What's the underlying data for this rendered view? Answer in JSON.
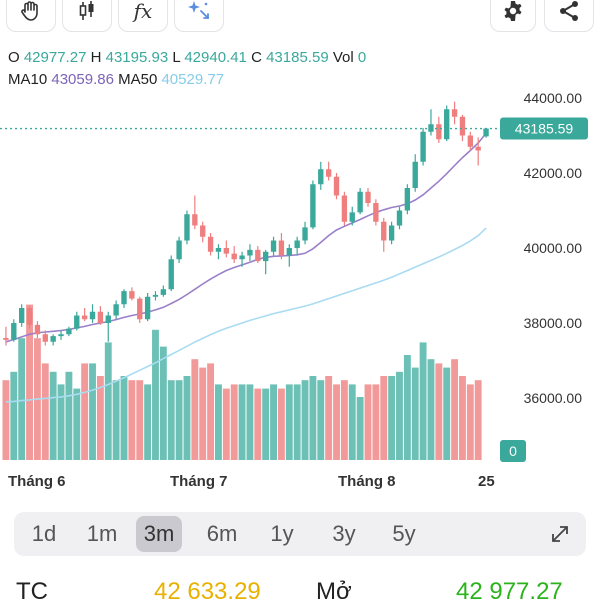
{
  "toolbar": {
    "left_tools": [
      {
        "icon": "hand-icon"
      },
      {
        "icon": "candlestick-icon"
      },
      {
        "icon": "function-icon",
        "label": "fx"
      },
      {
        "icon": "sparkle-icon"
      }
    ],
    "right_tools": [
      {
        "icon": "gear-icon"
      },
      {
        "icon": "share-icon"
      }
    ]
  },
  "ohlc": {
    "open_label": "O",
    "open": "42977.27",
    "high_label": "H",
    "high": "43195.93",
    "low_label": "L",
    "low": "42940.41",
    "close_label": "C",
    "close": "43185.59",
    "vol_label": "Vol",
    "vol": "0"
  },
  "ma": {
    "ma10_label": "MA10",
    "ma10": "43059.86",
    "ma50_label": "MA50",
    "ma50": "40529.77"
  },
  "colors": {
    "up": "#3aa89b",
    "down": "#ef7f7f",
    "up_volume": "#6cc0b5",
    "down_volume": "#f2999a",
    "ma10": "#9a7fca",
    "ma50": "#a9dcf2",
    "price_tag": "#3aa89b"
  },
  "chart_data": {
    "type": "candlestick",
    "y_ticks": [
      "44000.00",
      "42000.00",
      "40000.00",
      "38000.00",
      "36000.00"
    ],
    "ylim": [
      35000,
      44600
    ],
    "x_labels": [
      "Tháng 6",
      "Tháng 7",
      "Tháng 8",
      "25"
    ],
    "current_price_label": "43185.59",
    "volume_label": "0",
    "candles": [
      [
        37600,
        37900,
        37400,
        37550
      ],
      [
        37550,
        38100,
        37500,
        38000
      ],
      [
        38000,
        38500,
        37900,
        38400
      ],
      [
        38400,
        38450,
        37850,
        37950
      ],
      [
        37950,
        38050,
        37600,
        37700
      ],
      [
        37700,
        37800,
        37400,
        37500
      ],
      [
        37500,
        37700,
        37400,
        37650
      ],
      [
        37650,
        37800,
        37550,
        37700
      ],
      [
        37700,
        37900,
        37650,
        37850
      ],
      [
        37850,
        38300,
        37800,
        38200
      ],
      [
        38200,
        38400,
        38050,
        38100
      ],
      [
        38100,
        38500,
        38000,
        38300
      ],
      [
        38300,
        38450,
        37950,
        38000
      ],
      [
        38000,
        38300,
        37500,
        38200
      ],
      [
        38200,
        38600,
        38100,
        38500
      ],
      [
        38500,
        38900,
        38400,
        38850
      ],
      [
        38850,
        38950,
        38600,
        38650
      ],
      [
        38650,
        38700,
        38000,
        38100
      ],
      [
        38100,
        38800,
        38050,
        38700
      ],
      [
        38700,
        38850,
        38600,
        38750
      ],
      [
        38750,
        39000,
        38700,
        38900
      ],
      [
        38900,
        39800,
        38850,
        39700
      ],
      [
        39700,
        40300,
        39600,
        40200
      ],
      [
        40200,
        41000,
        40100,
        40900
      ],
      [
        40900,
        41400,
        40500,
        40600
      ],
      [
        40600,
        40700,
        40150,
        40300
      ],
      [
        40300,
        40400,
        39800,
        39900
      ],
      [
        39900,
        40100,
        39700,
        40000
      ],
      [
        40000,
        40200,
        39750,
        39850
      ],
      [
        39850,
        40050,
        39600,
        39700
      ],
      [
        39700,
        39900,
        39500,
        39800
      ],
      [
        39800,
        40100,
        39650,
        39950
      ],
      [
        39950,
        40050,
        39600,
        39650
      ],
      [
        39650,
        39950,
        39300,
        39900
      ],
      [
        39900,
        40300,
        39800,
        40200
      ],
      [
        40200,
        40400,
        39700,
        39800
      ],
      [
        39800,
        40100,
        39500,
        40000
      ],
      [
        40000,
        40300,
        39800,
        40200
      ],
      [
        40200,
        40700,
        40100,
        40550
      ],
      [
        40550,
        41800,
        40500,
        41700
      ],
      [
        41700,
        42300,
        41550,
        42100
      ],
      [
        42100,
        42300,
        41800,
        41900
      ],
      [
        41900,
        42000,
        41300,
        41400
      ],
      [
        41400,
        41500,
        40600,
        40700
      ],
      [
        40700,
        41100,
        40600,
        40950
      ],
      [
        40950,
        41600,
        40900,
        41500
      ],
      [
        41500,
        41600,
        41100,
        41200
      ],
      [
        41200,
        41300,
        40600,
        40700
      ],
      [
        40700,
        40800,
        39900,
        40200
      ],
      [
        40200,
        40700,
        40100,
        40600
      ],
      [
        40600,
        41100,
        40500,
        41000
      ],
      [
        41000,
        41700,
        40900,
        41600
      ],
      [
        41600,
        42500,
        41500,
        42300
      ],
      [
        42300,
        43200,
        42200,
        43100
      ],
      [
        43100,
        43700,
        43000,
        43300
      ],
      [
        43300,
        43500,
        42800,
        42900
      ],
      [
        42900,
        43800,
        42850,
        43700
      ],
      [
        43700,
        43900,
        43300,
        43500
      ],
      [
        43500,
        43550,
        42850,
        43000
      ],
      [
        43000,
        43100,
        42600,
        42700
      ],
      [
        42700,
        42950,
        42200,
        42600
      ],
      [
        42977.27,
        43195.93,
        42940.41,
        43185.59
      ]
    ],
    "volumes": [
      0.38,
      0.42,
      0.58,
      0.74,
      0.58,
      0.46,
      0.42,
      0.36,
      0.42,
      0.34,
      0.46,
      0.46,
      0.4,
      0.56,
      0.38,
      0.4,
      0.38,
      0.38,
      0.36,
      0.62,
      0.54,
      0.38,
      0.38,
      0.4,
      0.48,
      0.44,
      0.46,
      0.36,
      0.34,
      0.36,
      0.36,
      0.36,
      0.34,
      0.34,
      0.36,
      0.34,
      0.36,
      0.36,
      0.38,
      0.4,
      0.38,
      0.4,
      0.36,
      0.38,
      0.36,
      0.3,
      0.36,
      0.36,
      0.4,
      0.4,
      0.42,
      0.5,
      0.44,
      0.56,
      0.48,
      0.46,
      0.44,
      0.48,
      0.4,
      0.36,
      0.38,
      0
    ],
    "ma10": [
      37500,
      37560,
      37630,
      37700,
      37740,
      37760,
      37780,
      37800,
      37830,
      37870,
      37910,
      37960,
      38000,
      38040,
      38090,
      38150,
      38200,
      38240,
      38290,
      38350,
      38420,
      38520,
      38630,
      38760,
      38900,
      39040,
      39170,
      39290,
      39400,
      39480,
      39550,
      39620,
      39700,
      39750,
      39780,
      39790,
      39800,
      39820,
      39860,
      39980,
      40150,
      40330,
      40480,
      40580,
      40670,
      40760,
      40860,
      40950,
      41020,
      41080,
      41120,
      41180,
      41280,
      41420,
      41600,
      41780,
      41980,
      42200,
      42410,
      42600,
      42800,
      43059.86
    ],
    "ma50": [
      35900,
      35910,
      35930,
      35950,
      35970,
      35990,
      36010,
      36030,
      36060,
      36100,
      36150,
      36210,
      36280,
      36360,
      36450,
      36540,
      36640,
      36740,
      36840,
      36940,
      37050,
      37160,
      37270,
      37380,
      37490,
      37590,
      37690,
      37780,
      37860,
      37930,
      38000,
      38070,
      38130,
      38190,
      38250,
      38300,
      38350,
      38400,
      38450,
      38510,
      38580,
      38650,
      38720,
      38790,
      38860,
      38930,
      39000,
      39070,
      39140,
      39220,
      39310,
      39400,
      39490,
      39580,
      39670,
      39760,
      39860,
      39960,
      40070,
      40190,
      40330,
      40529.77
    ]
  },
  "ranges": [
    "1d",
    "1m",
    "3m",
    "6m",
    "1y",
    "3y",
    "5y"
  ],
  "active_range": "3m",
  "stats": {
    "ref_label": "TC",
    "ref_value": "42 633.29",
    "open_label": "Mở",
    "open_value": "42 977.27"
  }
}
